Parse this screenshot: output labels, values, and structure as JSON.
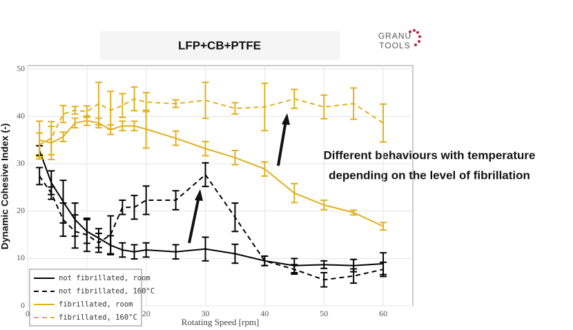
{
  "chart_data": {
    "type": "line",
    "title": "LFP+CB+PTFE",
    "xlabel": "Rotating Speed [rpm]",
    "ylabel": "Dynamic Cohesive Index (-)",
    "annotation": [
      "Different behaviours with temperature",
      "depending on the level of fibrillation"
    ],
    "logo_text": [
      "GRANU",
      "TOOLS"
    ],
    "x": [
      2,
      4,
      6,
      8,
      10,
      12,
      14,
      16,
      18,
      20,
      25,
      30,
      35,
      40,
      45,
      50,
      55,
      60
    ],
    "xlim": [
      0,
      65
    ],
    "xticks": [
      0,
      10,
      20,
      30,
      40,
      50,
      60
    ],
    "ylim": [
      0,
      50
    ],
    "yticks": [
      0,
      10,
      20,
      30,
      40,
      50
    ],
    "grid": true,
    "legend_position": "lower left",
    "series": [
      {
        "name": "not fibrillated, room",
        "color": "#000000",
        "linestyle": "solid",
        "values": [
          32.8,
          26,
          22,
          18.2,
          15.7,
          14.3,
          12.8,
          11.8,
          11.4,
          11.8,
          11.4,
          12,
          11,
          9.5,
          8.5,
          8.7,
          8.5,
          8.9
        ],
        "errors": [
          1,
          2.5,
          4.5,
          3.5,
          2.5,
          2,
          2,
          1.5,
          1.5,
          1.5,
          1.5,
          2.5,
          2,
          1,
          1.5,
          0.8,
          1.3,
          2.3
        ]
      },
      {
        "name": "not fibrillated, 160°C",
        "color": "#000000",
        "linestyle": "dashed",
        "values": [
          27.4,
          23.8,
          18.2,
          15.7,
          15,
          13.3,
          15,
          20.8,
          20.8,
          22.3,
          22.3,
          27.7,
          18.7,
          9.5,
          7.7,
          5.5,
          6.3,
          7.7
        ],
        "errors": [
          1.8,
          1.3,
          3.5,
          3.5,
          3.5,
          2,
          4,
          1.5,
          2.5,
          3,
          2,
          2.5,
          3,
          1,
          1,
          1.5,
          1.5,
          1.5
        ]
      },
      {
        "name": "fibrillated, room",
        "color": "#e0b01c",
        "linestyle": "solid",
        "values": [
          35,
          34.4,
          35.7,
          38.6,
          39.1,
          38.6,
          37.2,
          38,
          38,
          37.3,
          35.4,
          33.2,
          31.3,
          28.9,
          23.8,
          21.3,
          19.7,
          16.8
        ],
        "errors": [
          4,
          3.5,
          1,
          1,
          1,
          1,
          1,
          1,
          1,
          4,
          1.5,
          1.5,
          1.5,
          1.5,
          2,
          1,
          0.5,
          0.8
        ]
      },
      {
        "name": "fibrillated, 160°C",
        "color": "#e0b01c",
        "linestyle": "dashed",
        "values": [
          34,
          35.4,
          40.5,
          41.3,
          41,
          42.7,
          41.3,
          42.3,
          43.7,
          43,
          42.7,
          43.4,
          41.7,
          42,
          43.7,
          42,
          42.7,
          38.6
        ],
        "errors": [
          2.5,
          3.5,
          1.8,
          0.8,
          1.2,
          4.5,
          4,
          2.5,
          2.5,
          2,
          0.8,
          3.8,
          1.2,
          5,
          2,
          2.5,
          3.3,
          4
        ]
      }
    ]
  }
}
